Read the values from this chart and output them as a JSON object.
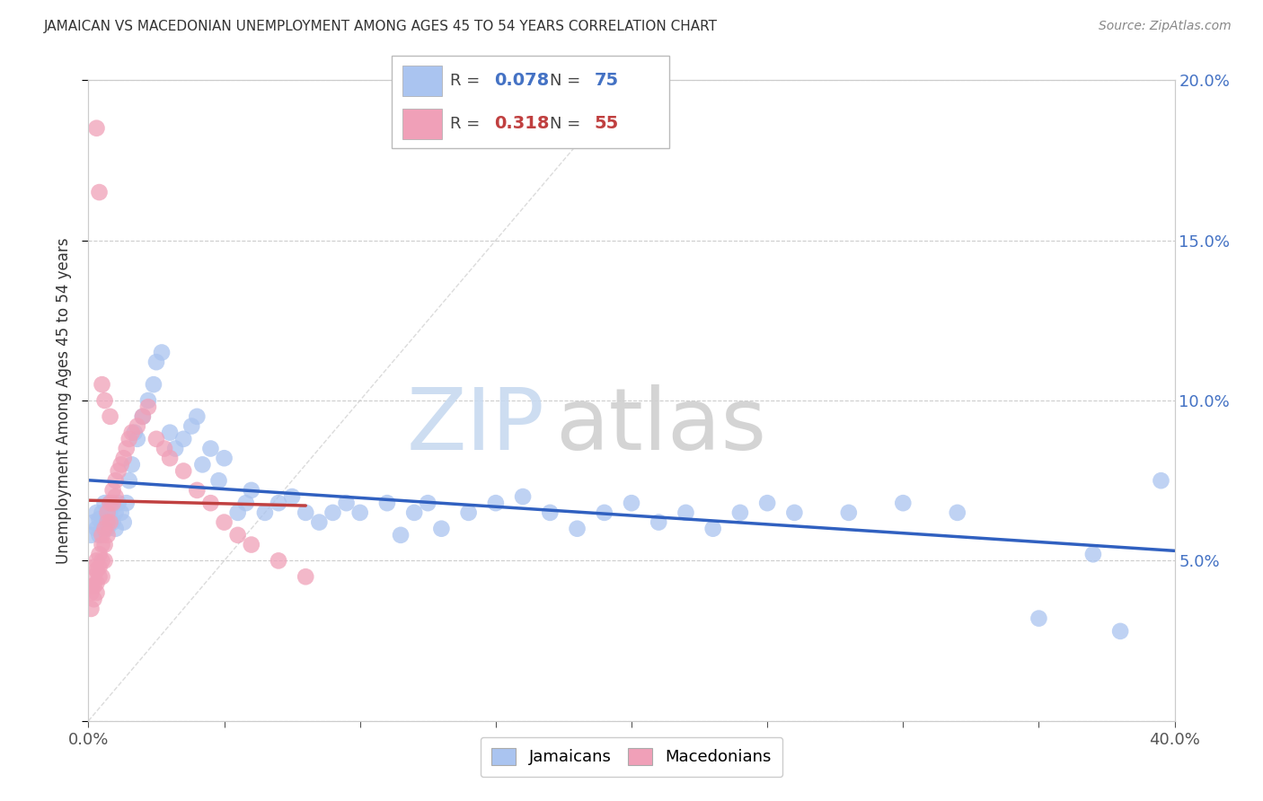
{
  "title": "JAMAICAN VS MACEDONIAN UNEMPLOYMENT AMONG AGES 45 TO 54 YEARS CORRELATION CHART",
  "source": "Source: ZipAtlas.com",
  "ylabel": "Unemployment Among Ages 45 to 54 years",
  "xlim": [
    0.0,
    0.4
  ],
  "ylim": [
    0.0,
    0.2
  ],
  "legend_r_jamaicans": "0.078",
  "legend_n_jamaicans": "75",
  "legend_r_macedonians": "0.318",
  "legend_n_macedonians": "55",
  "jamaican_color": "#aac4f0",
  "macedonian_color": "#f0a0b8",
  "jamaican_line_color": "#3060c0",
  "macedonian_line_color": "#c04040",
  "diagonal_line_color": "#cccccc",
  "jamaicans_x": [
    0.001,
    0.002,
    0.003,
    0.003,
    0.004,
    0.004,
    0.005,
    0.005,
    0.006,
    0.006,
    0.007,
    0.007,
    0.008,
    0.008,
    0.009,
    0.01,
    0.01,
    0.011,
    0.012,
    0.013,
    0.014,
    0.015,
    0.016,
    0.017,
    0.018,
    0.02,
    0.022,
    0.024,
    0.025,
    0.027,
    0.03,
    0.032,
    0.035,
    0.038,
    0.04,
    0.042,
    0.045,
    0.048,
    0.05,
    0.055,
    0.058,
    0.06,
    0.065,
    0.07,
    0.075,
    0.08,
    0.085,
    0.09,
    0.095,
    0.1,
    0.11,
    0.115,
    0.12,
    0.125,
    0.13,
    0.14,
    0.15,
    0.16,
    0.17,
    0.18,
    0.19,
    0.2,
    0.21,
    0.22,
    0.23,
    0.24,
    0.25,
    0.26,
    0.28,
    0.3,
    0.32,
    0.35,
    0.37,
    0.38,
    0.395
  ],
  "jamaicans_y": [
    0.058,
    0.062,
    0.06,
    0.065,
    0.058,
    0.063,
    0.06,
    0.065,
    0.062,
    0.068,
    0.063,
    0.06,
    0.065,
    0.068,
    0.062,
    0.065,
    0.06,
    0.068,
    0.065,
    0.062,
    0.068,
    0.075,
    0.08,
    0.09,
    0.088,
    0.095,
    0.1,
    0.105,
    0.112,
    0.115,
    0.09,
    0.085,
    0.088,
    0.092,
    0.095,
    0.08,
    0.085,
    0.075,
    0.082,
    0.065,
    0.068,
    0.072,
    0.065,
    0.068,
    0.07,
    0.065,
    0.062,
    0.065,
    0.068,
    0.065,
    0.068,
    0.058,
    0.065,
    0.068,
    0.06,
    0.065,
    0.068,
    0.07,
    0.065,
    0.06,
    0.065,
    0.068,
    0.062,
    0.065,
    0.06,
    0.065,
    0.068,
    0.065,
    0.065,
    0.068,
    0.065,
    0.032,
    0.052,
    0.028,
    0.075
  ],
  "macedonians_x": [
    0.001,
    0.001,
    0.001,
    0.002,
    0.002,
    0.002,
    0.002,
    0.003,
    0.003,
    0.003,
    0.003,
    0.004,
    0.004,
    0.004,
    0.005,
    0.005,
    0.005,
    0.005,
    0.006,
    0.006,
    0.006,
    0.007,
    0.007,
    0.007,
    0.008,
    0.008,
    0.009,
    0.009,
    0.01,
    0.01,
    0.011,
    0.012,
    0.013,
    0.014,
    0.015,
    0.016,
    0.018,
    0.02,
    0.022,
    0.025,
    0.028,
    0.03,
    0.035,
    0.04,
    0.045,
    0.05,
    0.055,
    0.06,
    0.07,
    0.08,
    0.003,
    0.004,
    0.005,
    0.006,
    0.008
  ],
  "macedonians_y": [
    0.035,
    0.04,
    0.042,
    0.038,
    0.042,
    0.045,
    0.048,
    0.04,
    0.043,
    0.047,
    0.05,
    0.045,
    0.048,
    0.052,
    0.045,
    0.05,
    0.055,
    0.058,
    0.05,
    0.055,
    0.06,
    0.058,
    0.062,
    0.065,
    0.062,
    0.068,
    0.068,
    0.072,
    0.07,
    0.075,
    0.078,
    0.08,
    0.082,
    0.085,
    0.088,
    0.09,
    0.092,
    0.095,
    0.098,
    0.088,
    0.085,
    0.082,
    0.078,
    0.072,
    0.068,
    0.062,
    0.058,
    0.055,
    0.05,
    0.045,
    0.185,
    0.165,
    0.105,
    0.1,
    0.095
  ]
}
